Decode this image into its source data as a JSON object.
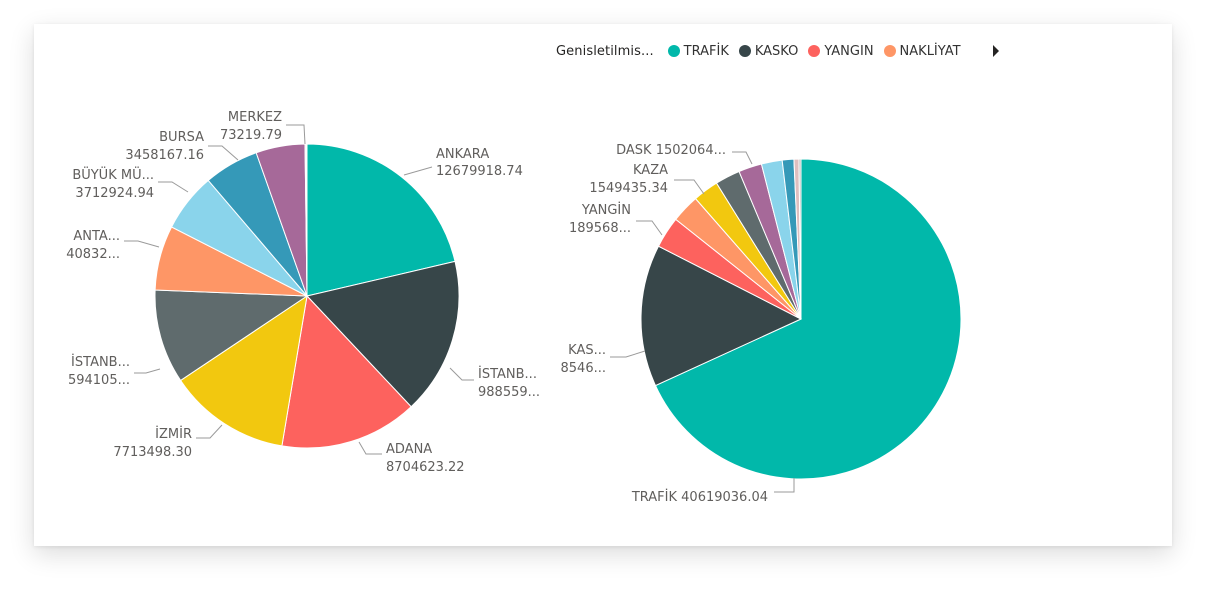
{
  "legend": {
    "title": "Genisletilmis...",
    "items": [
      {
        "label": "TRAFİK",
        "color": "#01B8AA"
      },
      {
        "label": "KASKO",
        "color": "#374649"
      },
      {
        "label": "YANGIN",
        "color": "#FD625E"
      },
      {
        "label": "NAKLİYAT",
        "color": "#FE9666"
      }
    ]
  },
  "chart_data": [
    {
      "type": "pie",
      "slices": [
        {
          "name": "ANKARA",
          "value": 12679918.74,
          "label": [
            "ANKARA",
            "12679918.74"
          ],
          "color": "#01B8AA"
        },
        {
          "name": "İSTANBUL",
          "value": 9885590,
          "label": [
            "İSTANB...",
            "988559..."
          ],
          "color": "#374649"
        },
        {
          "name": "ADANA",
          "value": 8704623.22,
          "label": [
            "ADANA",
            "8704623.22"
          ],
          "color": "#FD625E"
        },
        {
          "name": "İZMİR",
          "value": 7713498.3,
          "label": [
            "İZMİR",
            "7713498.30"
          ],
          "color": "#F2C80F"
        },
        {
          "name": "İSTANBUL",
          "value": 5941050,
          "label": [
            "İSTANB...",
            "594105..."
          ],
          "color": "#5F6B6D"
        },
        {
          "name": "ANTALYA",
          "value": 4083200,
          "label": [
            "ANTA...",
            "40832..."
          ],
          "color": "#FE9666"
        },
        {
          "name": "BÜYÜK MÜŞTERİLER",
          "value": 3712924.94,
          "label": [
            "BÜYÜK MÜ...",
            "3712924.94"
          ],
          "color": "#8AD4EB"
        },
        {
          "name": "BURSA",
          "value": 3458167.16,
          "label": [
            "BURSA",
            "3458167.16"
          ],
          "color": "#3599B8"
        },
        {
          "name": "",
          "value": 3100000,
          "label": [],
          "color": "#A66999"
        },
        {
          "name": "MERKEZ",
          "value": 73219.79,
          "label": [
            "MERKEZ",
            "73219.79"
          ],
          "color": "#DFBFBF"
        },
        {
          "name": "",
          "value": 50000,
          "label": [],
          "color": "#B3B3B3"
        }
      ]
    },
    {
      "type": "pie",
      "slices": [
        {
          "name": "TRAFİK",
          "value": 40619036.04,
          "label": [
            "TRAFİK 40619036.04"
          ],
          "color": "#01B8AA"
        },
        {
          "name": "KASKO",
          "value": 8546000,
          "label": [
            "KAS...",
            "8546..."
          ],
          "color": "#374649"
        },
        {
          "name": "YANGIN",
          "value": 1895680,
          "label": [
            "YANGİN",
            "189568..."
          ],
          "color": "#FD625E"
        },
        {
          "name": "NAKLİYAT",
          "value": 1700000,
          "label": [],
          "color": "#FE9666"
        },
        {
          "name": "KAZA",
          "value": 1549435.34,
          "label": [
            "KAZA",
            "1549435.34"
          ],
          "color": "#F2C80F"
        },
        {
          "name": "DASK",
          "value": 1502064,
          "label": [
            "DASK 1502064..."
          ],
          "color": "#5F6B6D"
        },
        {
          "name": "",
          "value": 1400000,
          "label": [],
          "color": "#A66999"
        },
        {
          "name": "",
          "value": 1250000,
          "label": [],
          "color": "#8AD4EB"
        },
        {
          "name": "",
          "value": 700000,
          "label": [],
          "color": "#3599B8"
        },
        {
          "name": "",
          "value": 300000,
          "label": [],
          "color": "#DFBFBF"
        },
        {
          "name": "",
          "value": 120000,
          "label": [],
          "color": "#B3B3B3"
        }
      ]
    }
  ]
}
